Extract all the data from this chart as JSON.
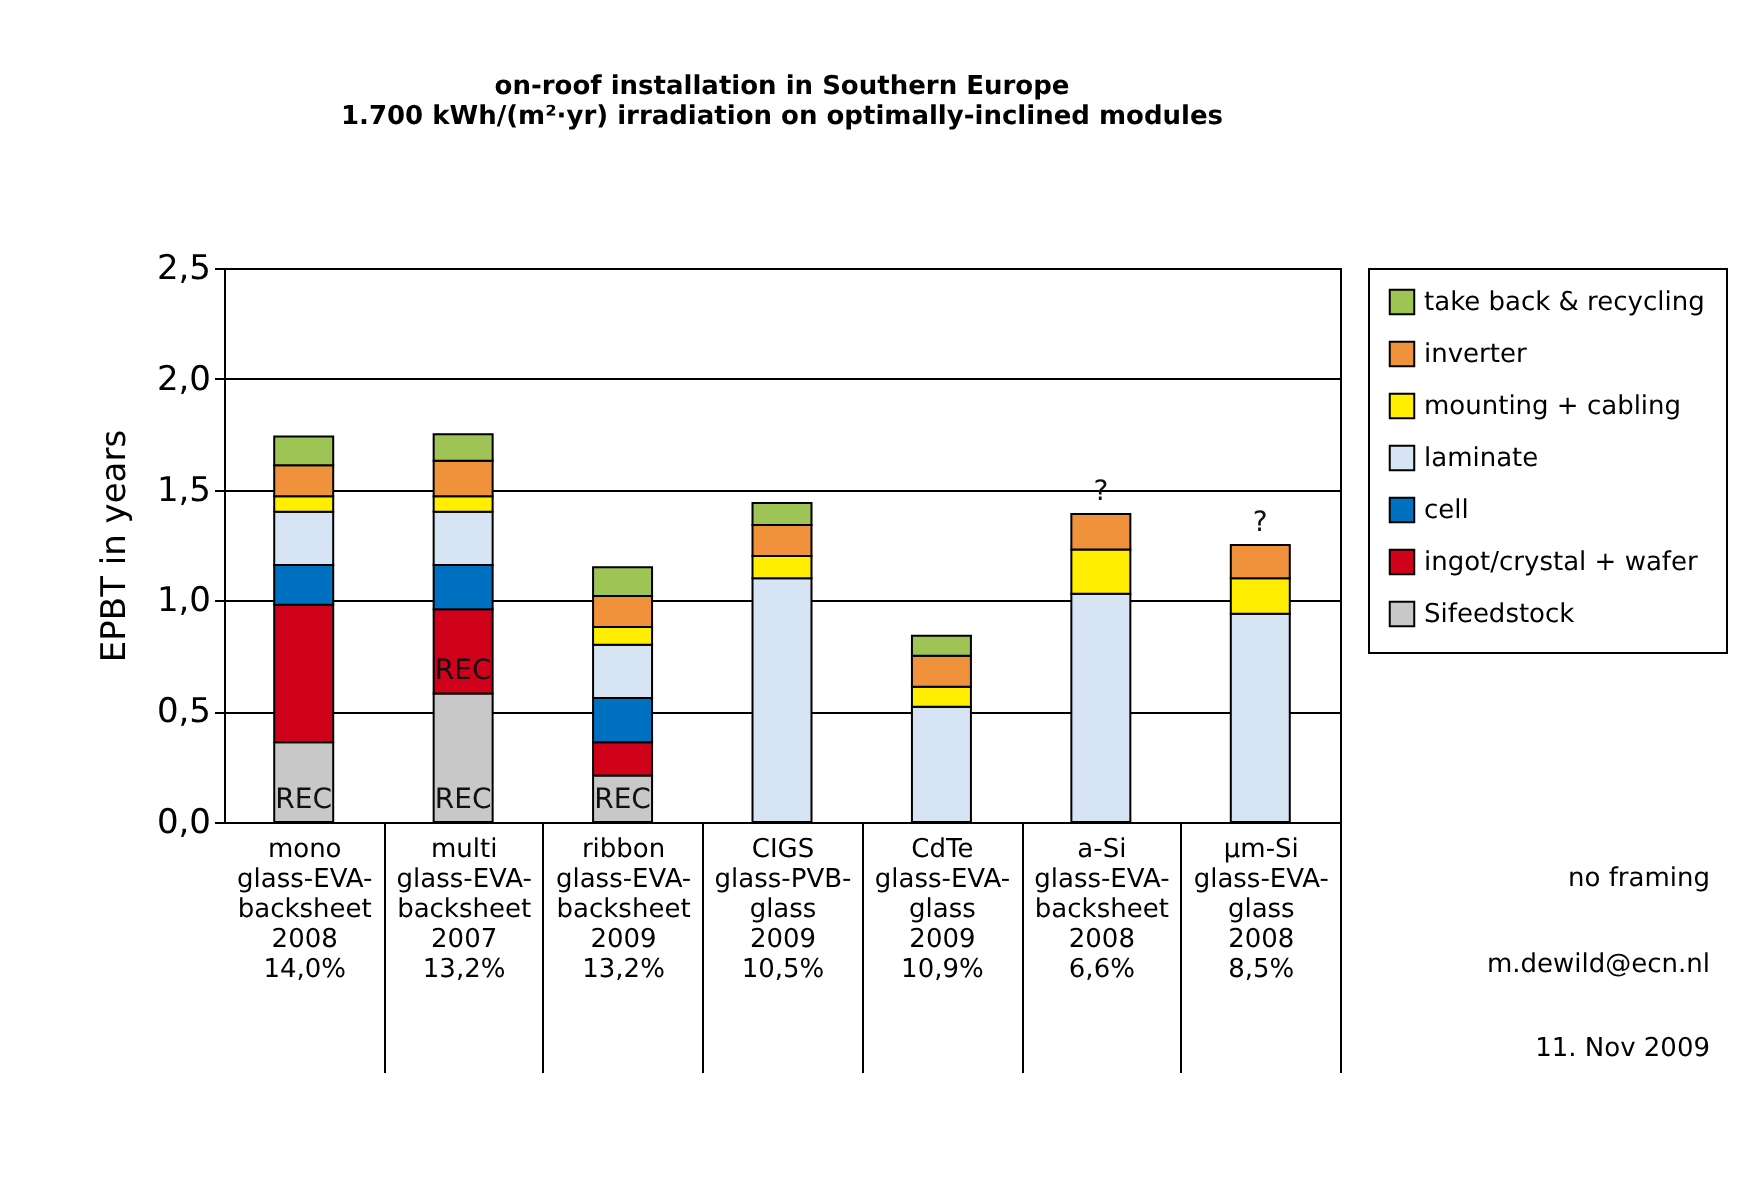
{
  "chart_data": {
    "type": "bar",
    "stacked": true,
    "title": "on-roof installation in Southern Europe",
    "subtitle": "1.700 kWh/(m²·yr) irradiation on optimally-inclined modules",
    "ylabel": "EPBT in years",
    "categories": [
      "mono",
      "multi",
      "ribbon",
      "CIGS",
      "CdTe",
      "a-Si",
      "µm-Si"
    ],
    "series": [
      {
        "name": "Sifeedstock",
        "color": "#c8c8c8",
        "values": [
          0.36,
          0.58,
          0.21,
          null,
          null,
          null,
          null
        ]
      },
      {
        "name": "ingot/crystal + wafer",
        "color": "#d0021b",
        "values": [
          0.62,
          0.38,
          0.15,
          null,
          null,
          null,
          null
        ]
      },
      {
        "name": "cell",
        "color": "#0070c0",
        "values": [
          0.18,
          0.2,
          0.2,
          null,
          null,
          null,
          null
        ]
      },
      {
        "name": "laminate",
        "color": "#d6e4f4",
        "values": [
          0.24,
          0.24,
          0.24,
          1.1,
          0.52,
          1.03,
          0.94
        ]
      },
      {
        "name": "mounting + cabling",
        "color": "#ffee00",
        "values": [
          0.07,
          0.07,
          0.08,
          0.1,
          0.09,
          0.2,
          0.16
        ]
      },
      {
        "name": "inverter",
        "color": "#f0913c",
        "values": [
          0.14,
          0.16,
          0.14,
          0.14,
          0.14,
          0.16,
          0.15
        ]
      },
      {
        "name": "take back & recycling",
        "color": "#9dc455",
        "values": [
          0.13,
          0.12,
          0.13,
          0.1,
          0.09,
          null,
          null
        ]
      }
    ],
    "ylim": [
      0,
      2.5
    ],
    "yticks": [
      {
        "value": 0,
        "label": "0,0"
      },
      {
        "value": 0.5,
        "label": "0,5"
      },
      {
        "value": 1,
        "label": "1,0"
      },
      {
        "value": 1.5,
        "label": "1,5"
      },
      {
        "value": 2,
        "label": "2,0"
      },
      {
        "value": 2.5,
        "label": "2,5"
      }
    ],
    "grid": "y",
    "legend": "right",
    "annotations": [
      "REC",
      "REC",
      "REC",
      "REC",
      "?",
      "?",
      "glass-EVA-backsheet",
      "2008",
      "14,0%",
      "glass-EVA-backsheet",
      "2007",
      "13,2%",
      "glass-EVA-backsheet",
      "2009",
      "13,2%",
      "glass-PVB-glass",
      "2009",
      "10,5%",
      "glass-EVA-glass",
      "2009",
      "10,9%",
      "glass-EVA-backsheet",
      "2008",
      "6,6%",
      "glass-EVA-glass",
      "2008",
      "8,5%",
      "no framing",
      "m.dewild@ecn.nl",
      "11. Nov 2009"
    ]
  }
}
